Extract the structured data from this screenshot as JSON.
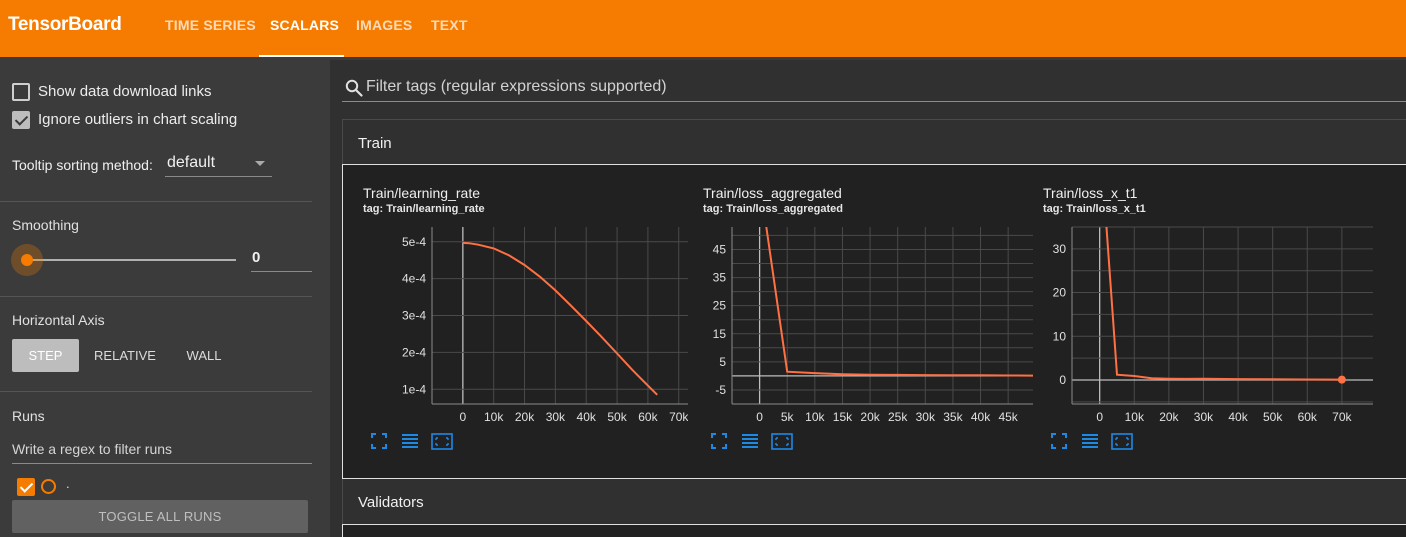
{
  "app": {
    "title": "TensorBoard",
    "tabs": [
      {
        "label": "TIME SERIES",
        "active": false
      },
      {
        "label": "SCALARS",
        "active": true
      },
      {
        "label": "IMAGES",
        "active": false
      },
      {
        "label": "TEXT",
        "active": false
      }
    ],
    "accent": "#f57c00"
  },
  "sidebar": {
    "show_download_links": {
      "label": "Show data download links",
      "checked": false
    },
    "ignore_outliers": {
      "label": "Ignore outliers in chart scaling",
      "checked": true
    },
    "tooltip_sorting": {
      "label": "Tooltip sorting method:",
      "value": "default"
    },
    "smoothing": {
      "label": "Smoothing",
      "value": "0",
      "level": 0
    },
    "horizontal_axis": {
      "label": "Horizontal Axis",
      "options": [
        "STEP",
        "RELATIVE",
        "WALL"
      ],
      "selected": "STEP"
    },
    "runs": {
      "label": "Runs",
      "filter_placeholder": "Write a regex to filter runs",
      "items": [
        {
          "name": ".",
          "checked": true,
          "color": "#f57c00"
        }
      ],
      "toggle_label": "TOGGLE ALL RUNS"
    }
  },
  "main": {
    "filter_placeholder": "Filter tags (regular expressions supported)",
    "groups": [
      {
        "name": "Train",
        "expanded": true
      },
      {
        "name": "Validators",
        "expanded": false
      }
    ]
  },
  "charts": [
    {
      "title": "Train/learning_rate",
      "tag": "tag: Train/learning_rate",
      "chart_data": {
        "type": "line",
        "x_ticks": [
          "0",
          "10k",
          "20k",
          "30k",
          "40k",
          "50k",
          "60k",
          "70k"
        ],
        "y_ticks": [
          "1e-4",
          "2e-4",
          "3e-4",
          "4e-4",
          "5e-4"
        ],
        "xlim": [
          -10000,
          73000
        ],
        "ylim": [
          6e-05,
          0.00054
        ],
        "series": [
          {
            "x": [
              0,
              2000,
              5000,
              10000,
              15000,
              20000,
              25000,
              30000,
              35000,
              40000,
              45000,
              50000,
              55000,
              60000,
              63000
            ],
            "y": [
              0.000497,
              0.000496,
              0.000492,
              0.000482,
              0.000463,
              0.000437,
              0.000405,
              0.000368,
              0.000327,
              0.000285,
              0.000242,
              0.000197,
              0.000152,
              0.00011,
              8.5e-05
            ]
          }
        ],
        "color": "#ff7043",
        "grid": true
      }
    },
    {
      "title": "Train/loss_aggregated",
      "tag": "tag: Train/loss_aggregated",
      "chart_data": {
        "type": "line",
        "x_ticks": [
          "0",
          "5k",
          "10k",
          "15k",
          "20k",
          "25k",
          "30k",
          "35k",
          "40k",
          "45k"
        ],
        "y_ticks": [
          "-5",
          "5",
          "15",
          "25",
          "35",
          "45"
        ],
        "xlim": [
          -5000,
          49500
        ],
        "ylim": [
          -10,
          53
        ],
        "series": [
          {
            "x": [
              1000,
              5000,
              10000,
              15000,
              20000,
              25000,
              30000,
              35000,
              40000,
              45000,
              49500
            ],
            "y": [
              56,
              1.5,
              1.0,
              0.6,
              0.4,
              0.35,
              0.3,
              0.25,
              0.2,
              0.15,
              0.1
            ]
          }
        ],
        "color": "#ff7043",
        "grid": true
      }
    },
    {
      "title": "Train/loss_x_t1",
      "tag": "tag: Train/loss_x_t1",
      "chart_data": {
        "type": "line",
        "x_ticks": [
          "0",
          "10k",
          "20k",
          "30k",
          "40k",
          "50k",
          "60k",
          "70k"
        ],
        "y_ticks": [
          "0",
          "10",
          "20",
          "30"
        ],
        "xlim": [
          -8000,
          79000
        ],
        "ylim": [
          -5.5,
          35
        ],
        "series": [
          {
            "x": [
              1500,
              5000,
              10000,
              15000,
              20000,
              25000,
              30000,
              40000,
              50000,
              60000,
              70000
            ],
            "y": [
              40,
              1.2,
              0.9,
              0.4,
              0.3,
              0.25,
              0.3,
              0.2,
              0.15,
              0.1,
              0.08
            ]
          }
        ],
        "color": "#ff7043",
        "grid": true
      }
    }
  ]
}
